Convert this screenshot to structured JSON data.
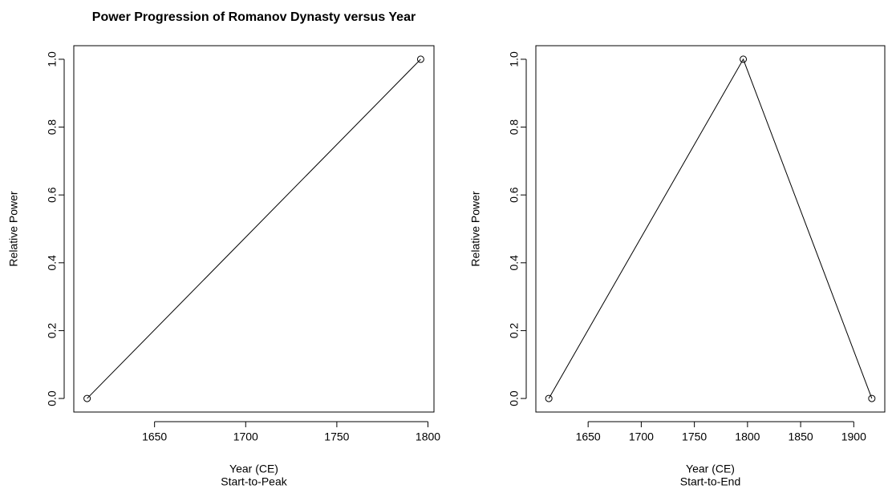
{
  "chart_data": [
    {
      "type": "line",
      "title": "Power Progression of Romanov Dynasty versus Year",
      "x": [
        1613,
        1796
      ],
      "values": [
        0,
        1
      ],
      "xlim": [
        1605.7,
        1803.3
      ],
      "xticks": [
        1650,
        1700,
        1750,
        1800
      ],
      "ylim": [
        -0.04,
        1.04
      ],
      "yticks": [
        {
          "value": 0,
          "label": "0.0"
        },
        {
          "value": 0.2,
          "label": "0.2"
        },
        {
          "value": 0.4,
          "label": "0.4"
        },
        {
          "value": 0.6,
          "label": "0.6"
        },
        {
          "value": 0.8,
          "label": "0.8"
        },
        {
          "value": 1,
          "label": "1.0"
        }
      ],
      "xlabel": "Year (CE)",
      "subtitle": "Start-to-Peak",
      "ylabel": "Relative Power",
      "color": "#000000"
    },
    {
      "type": "line",
      "x": [
        1613,
        1796,
        1917
      ],
      "values": [
        0,
        1,
        0
      ],
      "xlim": [
        1600.8,
        1929.2
      ],
      "xticks": [
        1650,
        1700,
        1750,
        1800,
        1850,
        1900
      ],
      "ylim": [
        -0.04,
        1.04
      ],
      "yticks": [
        {
          "value": 0,
          "label": "0.0"
        },
        {
          "value": 0.2,
          "label": "0.2"
        },
        {
          "value": 0.4,
          "label": "0.4"
        },
        {
          "value": 0.6,
          "label": "0.6"
        },
        {
          "value": 0.8,
          "label": "0.8"
        },
        {
          "value": 1,
          "label": "1.0"
        }
      ],
      "xlabel": "Year (CE)",
      "subtitle": "Start-to-End",
      "ylabel": "Relative Power",
      "color": "#000000"
    }
  ]
}
